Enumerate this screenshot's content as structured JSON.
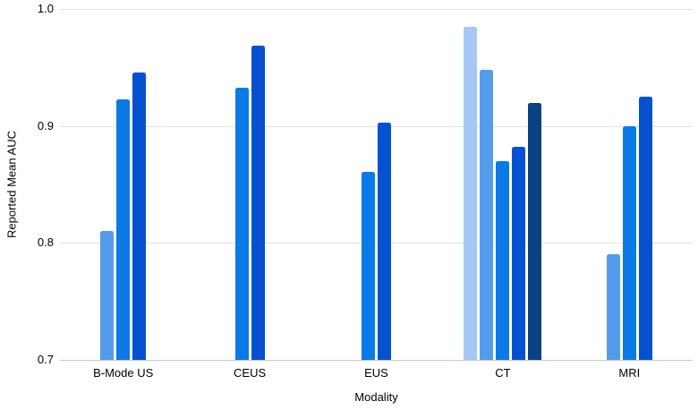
{
  "chart_data": {
    "type": "bar",
    "title": "",
    "xlabel": "Modality",
    "ylabel": "Reported Mean AUC",
    "ylim": [
      0.7,
      1.0
    ],
    "yticks": [
      0.7,
      0.8,
      0.9,
      1.0
    ],
    "ytick_labels": [
      "0.7",
      "0.8",
      "0.9",
      "1.0"
    ],
    "grid": true,
    "legend": false,
    "categories": [
      "B-Mode US",
      "CEUS",
      "EUS",
      "CT",
      "MRI"
    ],
    "groups": [
      {
        "category": "B-Mode US",
        "bars": [
          {
            "value": 0.81,
            "color": "#549ceb"
          },
          {
            "value": 0.923,
            "color": "#0b79e6"
          },
          {
            "value": 0.946,
            "color": "#0551d0"
          }
        ]
      },
      {
        "category": "CEUS",
        "bars": [
          {
            "value": 0.933,
            "color": "#0b79e6"
          },
          {
            "value": 0.969,
            "color": "#0551d0"
          }
        ]
      },
      {
        "category": "EUS",
        "bars": [
          {
            "value": 0.861,
            "color": "#0b79e6"
          },
          {
            "value": 0.903,
            "color": "#0551d0"
          }
        ]
      },
      {
        "category": "CT",
        "bars": [
          {
            "value": 0.985,
            "color": "#a5c8f5"
          },
          {
            "value": 0.948,
            "color": "#549ceb"
          },
          {
            "value": 0.87,
            "color": "#0b79e6"
          },
          {
            "value": 0.882,
            "color": "#0551d0"
          },
          {
            "value": 0.92,
            "color": "#0a4183"
          }
        ]
      },
      {
        "category": "MRI",
        "bars": [
          {
            "value": 0.79,
            "color": "#549ceb"
          },
          {
            "value": 0.9,
            "color": "#0b79e6"
          },
          {
            "value": 0.925,
            "color": "#0551d0"
          }
        ]
      }
    ],
    "colors": {
      "gridline": "#e2e2e2",
      "axis_line": "#c9c9c9",
      "text": "#000000",
      "background": "#ffffff"
    }
  }
}
